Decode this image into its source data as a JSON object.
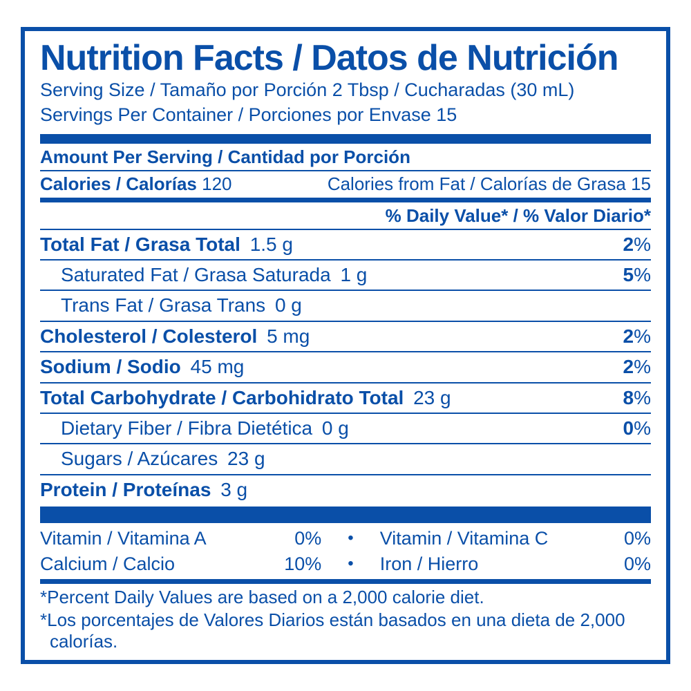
{
  "title": "Nutrition Facts / Datos de Nutrición",
  "serving_size": "Serving Size / Tamaño por Porción 2 Tbsp / Cucharadas (30 mL)",
  "servings_per": "Servings Per Container / Porciones por Envase 15",
  "amount_per_serving": "Amount Per Serving / Cantidad por Porción",
  "calories_label": "Calories / Calorías",
  "calories_value": "120",
  "cal_from_fat": "Calories from Fat / Calorías de Grasa 15",
  "dv_header": "% Daily Value* / % Valor Diario*",
  "nutrients": {
    "total_fat": {
      "label": "Total Fat / Grasa Total",
      "amount": "1.5 g",
      "pct": "2"
    },
    "sat_fat": {
      "label": "Saturated Fat / Grasa Saturada",
      "amount": "1 g",
      "pct": "5"
    },
    "trans_fat": {
      "label": "Trans Fat / Grasa Trans",
      "amount": "0 g",
      "pct": ""
    },
    "cholesterol": {
      "label": "Cholesterol / Colesterol",
      "amount": "5 mg",
      "pct": "2"
    },
    "sodium": {
      "label": "Sodium / Sodio",
      "amount": "45 mg",
      "pct": "2"
    },
    "carb": {
      "label": "Total Carbohydrate / Carbohidrato Total",
      "amount": "23 g",
      "pct": "8"
    },
    "fiber": {
      "label": "Dietary Fiber / Fibra Dietética",
      "amount": "0 g",
      "pct": "0"
    },
    "sugars": {
      "label": "Sugars / Azúcares",
      "amount": "23 g",
      "pct": ""
    },
    "protein": {
      "label": "Protein / Proteínas",
      "amount": "3 g",
      "pct": ""
    }
  },
  "vitamins": {
    "a": {
      "label": "Vitamin / Vitamina A",
      "pct": "0%"
    },
    "c": {
      "label": "Vitamin / Vitamina C",
      "pct": "0%"
    },
    "ca": {
      "label": "Calcium / Calcio",
      "pct": "10%"
    },
    "fe": {
      "label": "Iron / Hierro",
      "pct": "0%"
    }
  },
  "footnote1": "*Percent Daily Values are based on a 2,000 calorie diet.",
  "footnote2": "*Los porcentajes de Valores Diarios están basados en una dieta de 2,000 calorías.",
  "colors": {
    "primary": "#0a4fa8",
    "background": "#ffffff"
  }
}
